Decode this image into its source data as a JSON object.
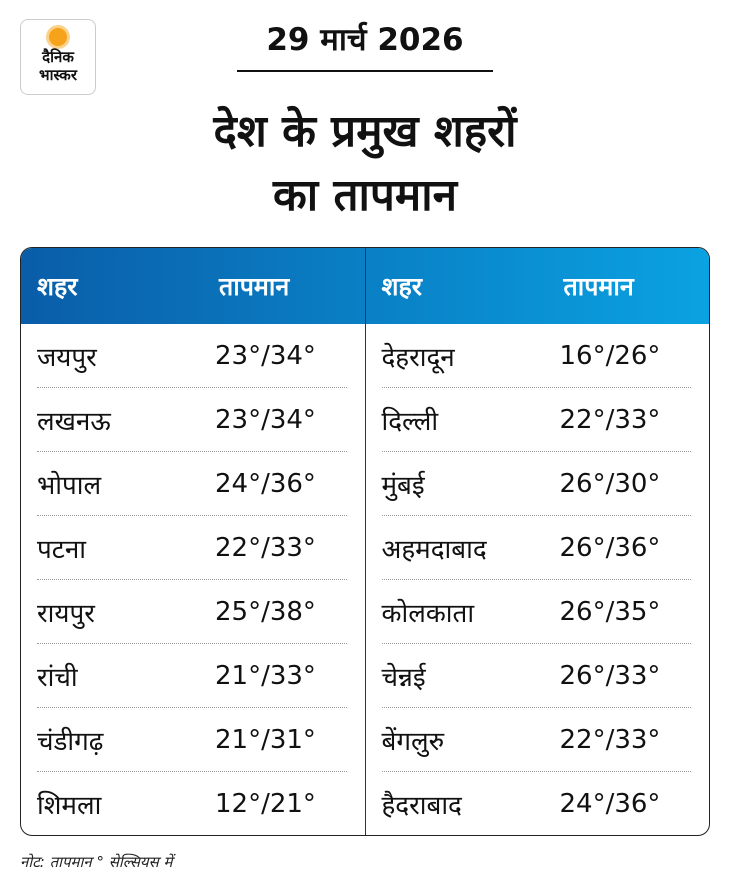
{
  "logo": {
    "line1": "दैनिक",
    "line2": "भास्कर"
  },
  "date": "29 मार्च 2026",
  "title_line1": "देश के प्रमुख शहरों",
  "title_line2": "का तापमान",
  "headers": {
    "city": "शहर",
    "temp": "तापमान"
  },
  "left": [
    {
      "city": "जयपुर",
      "temp": "23°/34°"
    },
    {
      "city": "लखनऊ",
      "temp": "23°/34°"
    },
    {
      "city": "भोपाल",
      "temp": "24°/36°"
    },
    {
      "city": "पटना",
      "temp": "22°/33°"
    },
    {
      "city": "रायपुर",
      "temp": "25°/38°"
    },
    {
      "city": "रांची",
      "temp": "21°/33°"
    },
    {
      "city": "चंडीगढ़",
      "temp": "21°/31°"
    },
    {
      "city": "शिमला",
      "temp": "12°/21°"
    }
  ],
  "right": [
    {
      "city": "देहरादून",
      "temp": "16°/26°"
    },
    {
      "city": "दिल्ली",
      "temp": "22°/33°"
    },
    {
      "city": "मुंबई",
      "temp": "26°/30°"
    },
    {
      "city": "अहमदाबाद",
      "temp": "26°/36°"
    },
    {
      "city": "कोलकाता",
      "temp": "26°/35°"
    },
    {
      "city": "चेन्नई",
      "temp": "26°/33°"
    },
    {
      "city": "बेंगलुरु",
      "temp": "22°/33°"
    },
    {
      "city": "हैदराबाद",
      "temp": "24°/36°"
    }
  ],
  "note": "नोट: तापमान  ° सेल्सियस में",
  "colors": {
    "header_start": "#0a5da8",
    "header_end": "#0aa2e2",
    "logo_sun": "#f7a21b"
  }
}
